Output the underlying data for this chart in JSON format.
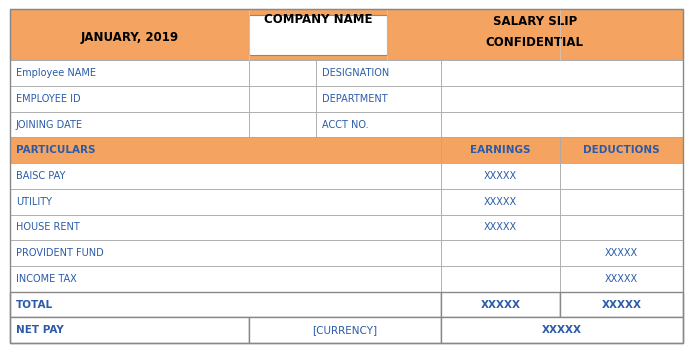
{
  "title_company": "COMPANY NAME",
  "title_slip": "SALARY SLIP",
  "title_month": "JANUARY, 2019",
  "title_confidential": "CONFIDENTIAL",
  "orange_color": "#F4A460",
  "text_dark": "#2B5BA8",
  "border_color": "#AAAAAA",
  "white": "#FFFFFF",
  "rows": [
    {
      "col1": "Employee NAME",
      "col2": "",
      "col3": "DESIGNATION",
      "col4": "",
      "bold": false,
      "bg": "#FFFFFF",
      "type": "info"
    },
    {
      "col1": "EMPLOYEE ID",
      "col2": "",
      "col3": "DEPARTMENT",
      "col4": "",
      "bold": false,
      "bg": "#FFFFFF",
      "type": "info"
    },
    {
      "col1": "JOINING DATE",
      "col2": "",
      "col3": "ACCT NO.",
      "col4": "",
      "bold": false,
      "bg": "#FFFFFF",
      "type": "info"
    },
    {
      "col1": "PARTICULARS",
      "col2": "",
      "col3": "EARNINGS",
      "col4": "DEDUCTIONS",
      "bold": true,
      "bg": "#F4A460",
      "type": "header"
    },
    {
      "col1": "BAISC PAY",
      "col2": "",
      "col3": "XXXXX",
      "col4": "",
      "bold": false,
      "bg": "#FFFFFF",
      "type": "data"
    },
    {
      "col1": "UTILITY",
      "col2": "",
      "col3": "XXXXX",
      "col4": "",
      "bold": false,
      "bg": "#FFFFFF",
      "type": "data"
    },
    {
      "col1": "HOUSE RENT",
      "col2": "",
      "col3": "XXXXX",
      "col4": "",
      "bold": false,
      "bg": "#FFFFFF",
      "type": "data"
    },
    {
      "col1": "PROVIDENT FUND",
      "col2": "",
      "col3": "",
      "col4": "XXXXX",
      "bold": false,
      "bg": "#FFFFFF",
      "type": "data"
    },
    {
      "col1": "INCOME TAX",
      "col2": "",
      "col3": "",
      "col4": "XXXXX",
      "bold": false,
      "bg": "#FFFFFF",
      "type": "data"
    },
    {
      "col1": "TOTAL",
      "col2": "",
      "col3": "XXXXX",
      "col4": "XXXXX",
      "bold": true,
      "bg": "#FFFFFF",
      "type": "total"
    },
    {
      "col1": "NET PAY",
      "col2": "[CURRENCY]",
      "col3": "XXXXX",
      "col4": "",
      "bold": true,
      "bg": "#FFFFFF",
      "type": "netpay"
    }
  ],
  "figsize": [
    6.93,
    3.52
  ],
  "dpi": 100
}
